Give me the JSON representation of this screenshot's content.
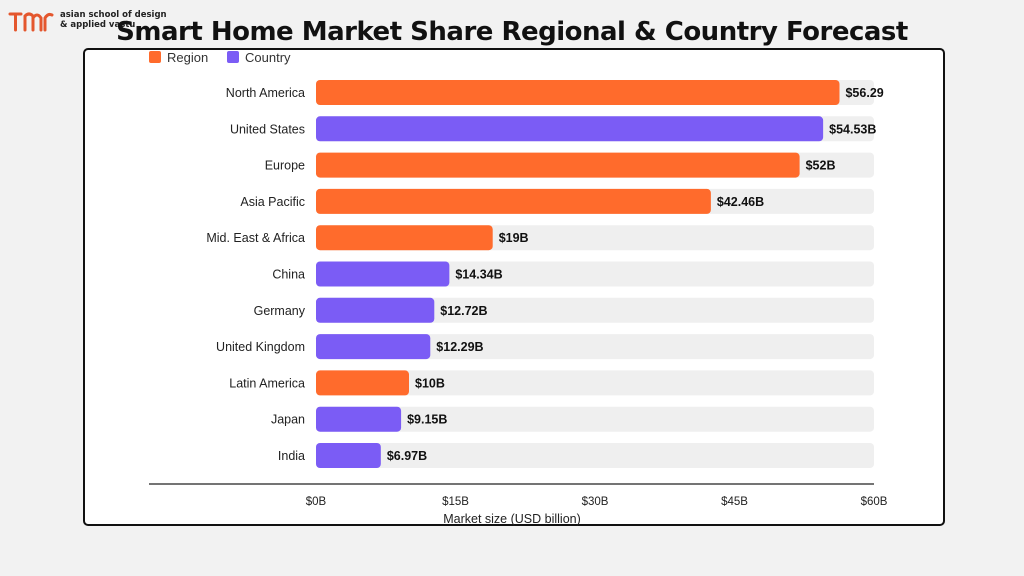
{
  "brand": {
    "logo_icon": "tmr-logo-icon",
    "line1": "asian school of design",
    "line2": "& applied vastu"
  },
  "chart_data": {
    "type": "bar",
    "orientation": "horizontal",
    "title": "Smart Home Market Share Regional & Country Forecast",
    "xlabel": "Market size (USD billion)",
    "ylabel": "",
    "xlim": [
      0,
      60
    ],
    "xticks": [
      {
        "value": 0,
        "label": "$0B"
      },
      {
        "value": 15,
        "label": "$15B"
      },
      {
        "value": 30,
        "label": "$30B"
      },
      {
        "value": 45,
        "label": "$45B"
      },
      {
        "value": 60,
        "label": "$60B"
      }
    ],
    "legend": {
      "placement": "top-left",
      "entries": [
        {
          "name": "Region",
          "color": "#ff6b2c"
        },
        {
          "name": "Country",
          "color": "#7b5cf5"
        }
      ]
    },
    "track_color": "#efefef",
    "categories": [
      "North America",
      "United States",
      "Europe",
      "Asia Pacific",
      "Mid. East & Africa",
      "China",
      "Germany",
      "United Kingdom",
      "Latin America",
      "Japan",
      "India"
    ],
    "values": [
      56.29,
      54.53,
      52,
      42.46,
      19,
      14.34,
      12.72,
      12.29,
      10,
      9.15,
      6.97
    ],
    "groups": [
      "Region",
      "Country",
      "Region",
      "Region",
      "Region",
      "Country",
      "Country",
      "Country",
      "Region",
      "Country",
      "Country"
    ],
    "data_labels": [
      "$56.29",
      "$54.53B",
      "$52B",
      "$42.46B",
      "$19B",
      "$14.34B",
      "$12.72B",
      "$12.29B",
      "$10B",
      "$9.15B",
      "$6.97B"
    ]
  }
}
